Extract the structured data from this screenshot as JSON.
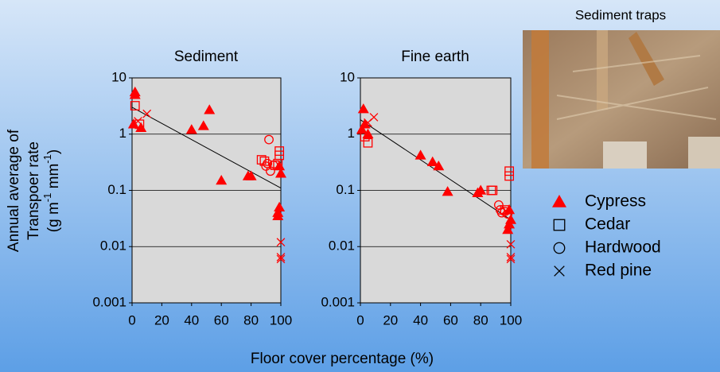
{
  "caption": "Sediment traps",
  "x_label": "Floor cover percentage (%)",
  "y_label": [
    "Annual average of",
    "Transpoer rate"
  ],
  "y_units": [
    "(g m",
    "-1",
    " mm",
    "-1",
    ")"
  ],
  "chart_data": [
    {
      "type": "scatter",
      "title": "Sediment",
      "ylog": true,
      "grid": true,
      "xlim": [
        0,
        100
      ],
      "xticks": [
        0,
        20,
        40,
        60,
        80,
        100
      ],
      "ylim": [
        0.001,
        10
      ],
      "yticks": [
        0.001,
        0.01,
        0.1,
        1,
        10
      ],
      "fit": {
        "x": [
          0,
          100
        ],
        "y": [
          3.0,
          0.11
        ]
      },
      "series": [
        {
          "name": "Cypress",
          "marker": "triangle",
          "color": "#ff0000",
          "x": [
            2,
            2,
            1,
            6,
            40,
            48,
            52,
            60,
            78,
            80,
            99,
            100,
            99,
            98,
            98
          ],
          "values": [
            5.6,
            5.0,
            1.5,
            1.3,
            1.2,
            1.4,
            2.7,
            0.15,
            0.18,
            0.18,
            0.27,
            0.2,
            0.05,
            0.04,
            0.035
          ]
        },
        {
          "name": "Cedar",
          "marker": "square",
          "color": "#ff0000",
          "x": [
            2,
            5,
            87,
            89,
            99,
            99,
            98,
            96
          ],
          "values": [
            3.2,
            1.5,
            0.35,
            0.33,
            0.5,
            0.42,
            0.3,
            0.28
          ]
        },
        {
          "name": "Hardwood",
          "marker": "circle",
          "color": "#ff0000",
          "x": [
            92,
            91,
            93,
            95,
            90
          ],
          "values": [
            0.8,
            0.3,
            0.22,
            0.28,
            0.27
          ]
        },
        {
          "name": "Red pine",
          "marker": "cross",
          "color": "#ff0000",
          "x": [
            4,
            10,
            100,
            100,
            100
          ],
          "values": [
            1.7,
            2.3,
            0.012,
            0.006,
            0.0065
          ]
        }
      ]
    },
    {
      "type": "scatter",
      "title": "Fine earth",
      "ylog": true,
      "grid": true,
      "xlim": [
        0,
        100
      ],
      "xticks": [
        0,
        20,
        40,
        60,
        80,
        100
      ],
      "ylim": [
        0.001,
        10
      ],
      "yticks": [
        0.001,
        0.01,
        0.1,
        1,
        10
      ],
      "fit": {
        "x": [
          0,
          100
        ],
        "y": [
          1.8,
          0.03
        ]
      },
      "series": [
        {
          "marker": "triangle",
          "color": "#ff0000",
          "x": [
            2,
            1,
            3,
            5,
            40,
            48,
            52,
            58,
            78,
            80,
            99,
            99,
            98,
            100
          ],
          "values": [
            2.8,
            1.2,
            1.5,
            1.0,
            0.42,
            0.32,
            0.27,
            0.095,
            0.09,
            0.1,
            0.045,
            0.025,
            0.02,
            0.03
          ]
        },
        {
          "marker": "square",
          "color": "#ff0000",
          "x": [
            3,
            5,
            87,
            88,
            99,
            99,
            96
          ],
          "values": [
            0.9,
            0.7,
            0.1,
            0.1,
            0.22,
            0.18,
            0.045
          ]
        },
        {
          "marker": "circle",
          "color": "#ff0000",
          "x": [
            92,
            93,
            94,
            96,
            98
          ],
          "values": [
            0.055,
            0.045,
            0.04,
            0.042,
            0.038
          ]
        },
        {
          "marker": "cross",
          "color": "#ff0000",
          "x": [
            5,
            9,
            100,
            100,
            100
          ],
          "values": [
            1.6,
            2.0,
            0.011,
            0.006,
            0.0065
          ]
        }
      ]
    }
  ]
}
